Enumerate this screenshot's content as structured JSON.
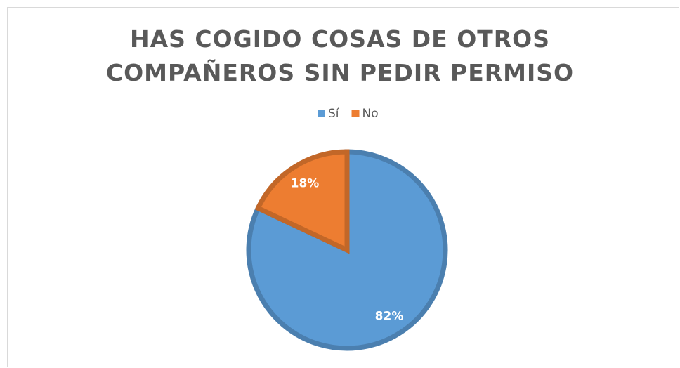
{
  "chart_data": {
    "type": "pie",
    "title": "HAS COGIDO COSAS DE OTROS COMPAÑEROS SIN PEDIR PERMISO",
    "categories": [
      "Sí",
      "No"
    ],
    "values": [
      82,
      18
    ],
    "value_labels": [
      "82%",
      "18%"
    ],
    "colors": [
      "#5b9bd5",
      "#ed7d31"
    ],
    "legend": "top"
  }
}
